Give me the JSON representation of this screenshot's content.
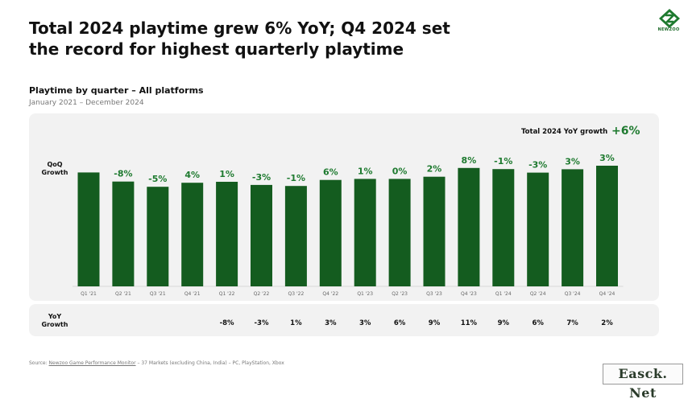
{
  "header": {
    "title_line1": "Total 2024 playtime grew 6% YoY; Q4 2024 set",
    "title_line2": "the record for highest quarterly playtime",
    "logo_text": "NEWZOO"
  },
  "subtitle": "Playtime by quarter – All platforms",
  "date_range": "January 2021 – December 2024",
  "total_label": "Total 2024 YoY growth",
  "total_value": "+6%",
  "qoq_label_line1": "QoQ",
  "qoq_label_line2": "Growth",
  "yoy_label_line1": "YoY",
  "yoy_label_line2": "Growth",
  "source": {
    "prefix": "Source: ",
    "link": "Newzoo Game Performance Monitor",
    "rest": " – 37 Markets (excluding China, India) – PC, PlayStation, Xbox"
  },
  "watermark": "Easck. Net",
  "colors": {
    "bar": "#145c1f",
    "accent": "#1e7a2f",
    "panel": "#f2f2f2"
  },
  "chart_data": {
    "type": "bar",
    "categories": [
      "Q1 '21",
      "Q2 '21",
      "Q3 '21",
      "Q4 '21",
      "Q1 '22",
      "Q2 '22",
      "Q3 '22",
      "Q4 '22",
      "Q1 '23",
      "Q2 '23",
      "Q3 '23",
      "Q4 '23",
      "Q1 '24",
      "Q2 '24",
      "Q3 '24",
      "Q4 '24"
    ],
    "values": [
      100,
      92,
      87.4,
      90.9,
      91.8,
      89.0,
      88.1,
      93.4,
      94.3,
      94.3,
      96.2,
      103.9,
      102.9,
      99.8,
      102.8,
      105.9
    ],
    "qoq_growth": [
      "",
      "-8%",
      "-5%",
      "4%",
      "1%",
      "-3%",
      "-1%",
      "6%",
      "1%",
      "0%",
      "2%",
      "8%",
      "-1%",
      "-3%",
      "3%",
      "3%"
    ],
    "yoy_growth": [
      "",
      "",
      "",
      "",
      "-8%",
      "-3%",
      "1%",
      "3%",
      "3%",
      "6%",
      "9%",
      "11%",
      "9%",
      "6%",
      "7%",
      "2%"
    ],
    "ylim": [
      0,
      105.9
    ],
    "grid": false,
    "axes_visible": false
  }
}
